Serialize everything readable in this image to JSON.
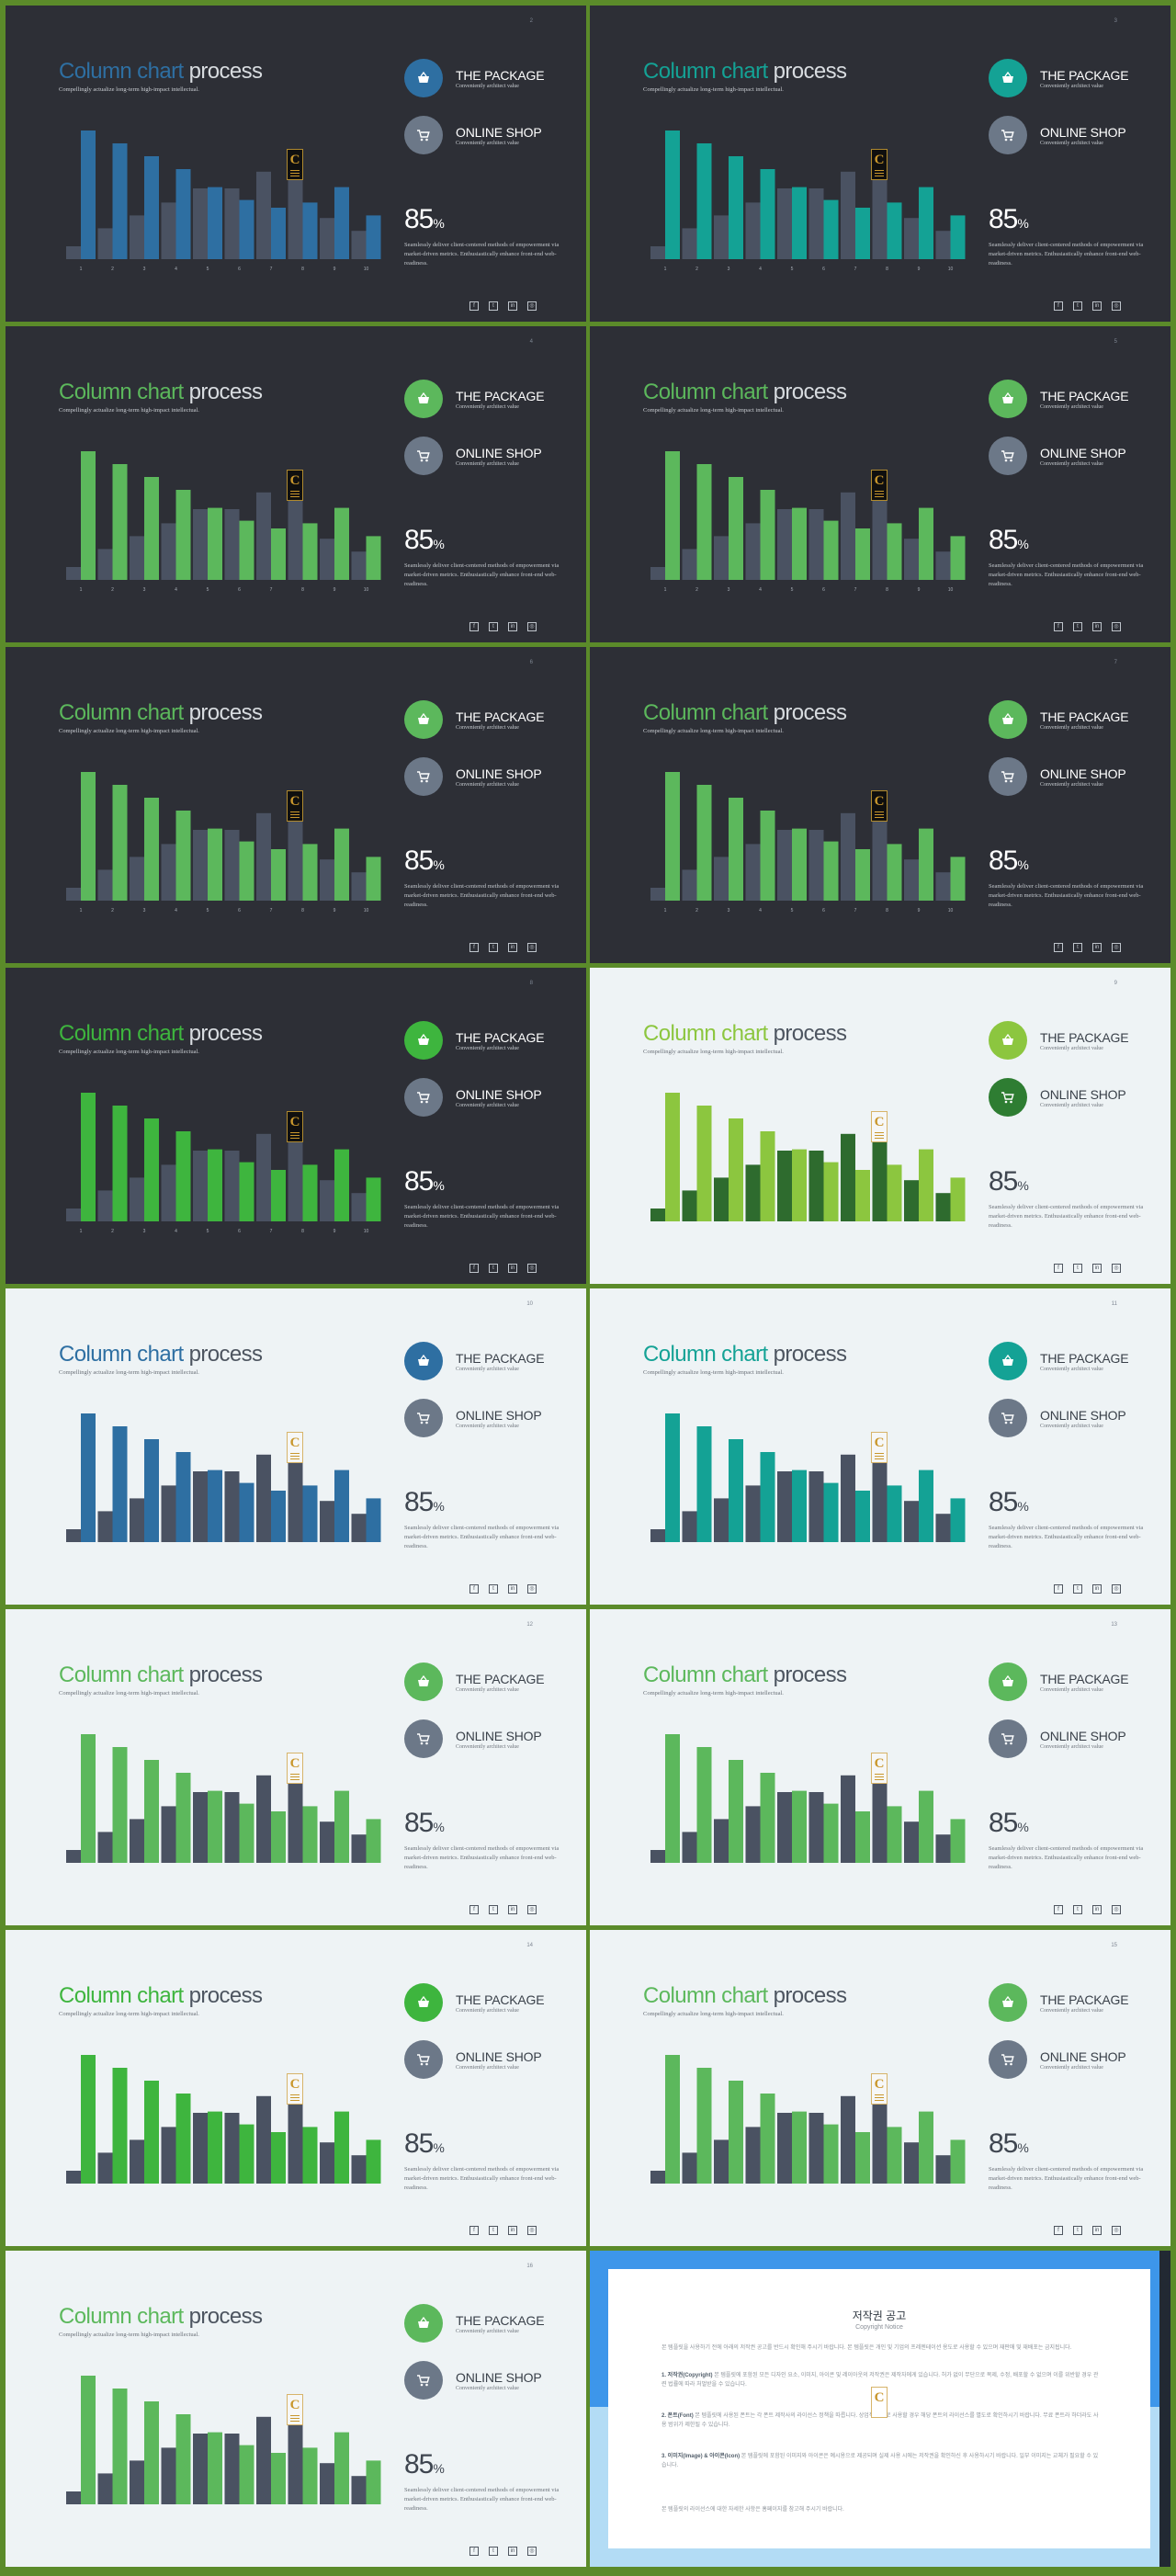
{
  "common": {
    "title_part1": "Column chart",
    "title_part2": "process",
    "subtitle": "Compellingly actualize long-term high-impact intellectual.",
    "package_label": "THE PACKAGE",
    "package_sub": "Conveniently architect value",
    "shop_label": "ONLINE SHOP",
    "shop_sub": "Conveniently architect value",
    "percent_value": "85",
    "percent_sign": "%",
    "desc": "Seamlessly deliver client-centered methods of empowerment via market-driven metrics. Enthusiastically enhance front-end web-readiness.",
    "badge_letter": "C",
    "x_ticks": [
      "1",
      "2",
      "3",
      "4",
      "5",
      "6",
      "7",
      "8",
      "9",
      "10"
    ],
    "social_icons": [
      {
        "name": "facebook-icon",
        "glyph": "f"
      },
      {
        "name": "twitter-icon",
        "glyph": "t"
      },
      {
        "name": "linkedin-icon",
        "glyph": "in"
      },
      {
        "name": "instagram-icon",
        "glyph": "◎"
      }
    ]
  },
  "chart_data": {
    "type": "bar",
    "categories": [
      "1",
      "2",
      "3",
      "4",
      "5",
      "6",
      "7",
      "8",
      "9",
      "10"
    ],
    "series": [
      {
        "values": [
          10,
          24,
          34,
          44,
          55,
          55,
          68,
          62,
          32,
          22
        ]
      },
      {
        "values": [
          100,
          90,
          80,
          70,
          56,
          46,
          40,
          44,
          56,
          34
        ]
      }
    ],
    "ylim": [
      0,
      100
    ]
  },
  "slides": [
    {
      "num": "2",
      "theme": "dark",
      "accent": "#2e6fa2",
      "pkg": "#2e6fa2",
      "shop": "#6c7888",
      "grey": "#4a5262",
      "showTicks": true
    },
    {
      "num": "3",
      "theme": "dark",
      "accent": "#14a295",
      "pkg": "#14a295",
      "shop": "#6c7888",
      "grey": "#4a5262",
      "showTicks": true
    },
    {
      "num": "4",
      "theme": "dark",
      "accent": "#5cb85c",
      "pkg": "#5cb85c",
      "shop": "#6c7888",
      "grey": "#4a5262",
      "showTicks": true
    },
    {
      "num": "5",
      "theme": "dark",
      "accent": "#5cb85c",
      "pkg": "#5cb85c",
      "shop": "#6c7888",
      "grey": "#4a5262",
      "showTicks": true
    },
    {
      "num": "6",
      "theme": "dark",
      "accent": "#5cb85c",
      "pkg": "#5cb85c",
      "shop": "#6c7888",
      "grey": "#4a5262",
      "showTicks": true
    },
    {
      "num": "7",
      "theme": "dark",
      "accent": "#5cb85c",
      "pkg": "#5cb85c",
      "shop": "#6c7888",
      "grey": "#4a5262",
      "showTicks": true
    },
    {
      "num": "8",
      "theme": "dark",
      "accent": "#3eb53e",
      "pkg": "#3eb53e",
      "shop": "#6c7888",
      "grey": "#4a5262",
      "showTicks": true
    },
    {
      "num": "9",
      "theme": "light",
      "accent": "#8cc63f",
      "pkg": "#8cc63f",
      "shop": "#2e7d32",
      "grey": "#2e6b2e",
      "showTicks": false
    },
    {
      "num": "10",
      "theme": "light",
      "accent": "#2e6fa2",
      "pkg": "#2e6fa2",
      "shop": "#6c7888",
      "grey": "#4a5262",
      "showTicks": false
    },
    {
      "num": "11",
      "theme": "light",
      "accent": "#14a295",
      "pkg": "#14a295",
      "shop": "#6c7888",
      "grey": "#4a5262",
      "showTicks": false
    },
    {
      "num": "12",
      "theme": "light",
      "accent": "#5cb85c",
      "pkg": "#5cb85c",
      "shop": "#6c7888",
      "grey": "#4a5262",
      "showTicks": false
    },
    {
      "num": "13",
      "theme": "light",
      "accent": "#5cb85c",
      "pkg": "#5cb85c",
      "shop": "#6c7888",
      "grey": "#4a5262",
      "showTicks": false
    },
    {
      "num": "14",
      "theme": "light",
      "accent": "#3eb53e",
      "pkg": "#3eb53e",
      "shop": "#6c7888",
      "grey": "#4a5262",
      "showTicks": false
    },
    {
      "num": "15",
      "theme": "light",
      "accent": "#5cb85c",
      "pkg": "#5cb85c",
      "shop": "#6c7888",
      "grey": "#4a5262",
      "showTicks": false
    },
    {
      "num": "16",
      "theme": "light",
      "accent": "#5cb85c",
      "pkg": "#5cb85c",
      "shop": "#6c7888",
      "grey": "#4a5262",
      "showTicks": false
    }
  ],
  "notice": {
    "title": "저작권 공고",
    "subtitle": "Copyright Notice",
    "paragraphs": [
      {
        "lead": "",
        "text": "본 템플릿을 사용하기 전에 아래의 저작권 공고를 반드시 확인해 주시기 바랍니다. 본 템플릿은 개인 및 기업의 프레젠테이션 용도로 사용할 수 있으며 재판매 및 재배포는 금지됩니다."
      },
      {
        "lead": "1. 저작권(Copyright)",
        "text": " 본 템플릿에 포함된 모든 디자인 요소, 이미지, 아이콘 및 레이아웃의 저작권은 제작자에게 있습니다. 허가 없이 무단으로 복제, 수정, 배포할 수 없으며 이를 위반할 경우 관련 법률에 따라 처벌받을 수 있습니다."
      },
      {
        "lead": "2. 폰트(Font)",
        "text": " 본 템플릿에 사용된 폰트는 각 폰트 제작사의 라이선스 정책을 따릅니다. 상업적 용도로 사용할 경우 해당 폰트의 라이선스를 별도로 확인하시기 바랍니다. 무료 폰트라 하더라도 사용 범위가 제한될 수 있습니다."
      },
      {
        "lead": "3. 이미지(Image) & 아이콘(Icon)",
        "text": " 본 템플릿에 포함된 이미지와 아이콘은 예시용으로 제공되며 실제 사용 시에는 저작권을 확인하신 후 사용하시기 바랍니다. 일부 이미지는 교체가 필요할 수 있습니다."
      },
      {
        "lead": "",
        "text": "본 템플릿의 라이선스에 대한 자세한 사항은 홈페이지를 참고해 주시기 바랍니다."
      }
    ]
  }
}
